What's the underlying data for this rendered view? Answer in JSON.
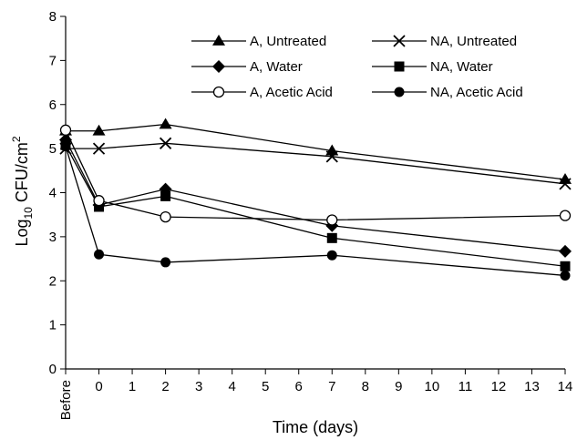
{
  "chart_data": {
    "type": "line",
    "xlabel": "Time (days)",
    "ylabel_main": "Log",
    "ylabel_sub": "10",
    "ylabel_rest": " CFU/cm",
    "ylabel_sup": "2",
    "ylim": [
      0,
      8
    ],
    "yticks": [
      0,
      1,
      2,
      3,
      4,
      5,
      6,
      7,
      8
    ],
    "xlim": [
      -1,
      14
    ],
    "xticks": [
      {
        "x": -1,
        "label": "Before"
      },
      {
        "x": 0,
        "label": "0"
      },
      {
        "x": 1,
        "label": "1"
      },
      {
        "x": 2,
        "label": "2"
      },
      {
        "x": 3,
        "label": "3"
      },
      {
        "x": 4,
        "label": "4"
      },
      {
        "x": 5,
        "label": "5"
      },
      {
        "x": 6,
        "label": "6"
      },
      {
        "x": 7,
        "label": "7"
      },
      {
        "x": 8,
        "label": "8"
      },
      {
        "x": 9,
        "label": "9"
      },
      {
        "x": 10,
        "label": "10"
      },
      {
        "x": 11,
        "label": "11"
      },
      {
        "x": 12,
        "label": "12"
      },
      {
        "x": 13,
        "label": "13"
      },
      {
        "x": 14,
        "label": "14"
      }
    ],
    "x": [
      -1,
      0,
      2,
      7,
      14
    ],
    "legend_placement": "top-right",
    "series": [
      {
        "name": "A, Untreated",
        "marker": "triangle",
        "values": [
          5.4,
          5.4,
          5.55,
          4.95,
          4.3
        ]
      },
      {
        "name": "NA, Untreated",
        "marker": "x",
        "values": [
          5.0,
          5.0,
          5.12,
          4.82,
          4.2
        ]
      },
      {
        "name": "A, Water",
        "marker": "diamond",
        "values": [
          5.2,
          3.72,
          4.08,
          3.25,
          2.67
        ]
      },
      {
        "name": "NA, Water",
        "marker": "square",
        "values": [
          5.08,
          3.68,
          3.92,
          2.97,
          2.33
        ]
      },
      {
        "name": "A, Acetic Acid",
        "marker": "circle-open",
        "values": [
          5.42,
          3.82,
          3.45,
          3.38,
          3.48
        ]
      },
      {
        "name": "NA, Acetic Acid",
        "marker": "circle",
        "values": [
          5.05,
          2.6,
          2.42,
          2.58,
          2.12
        ]
      }
    ]
  }
}
